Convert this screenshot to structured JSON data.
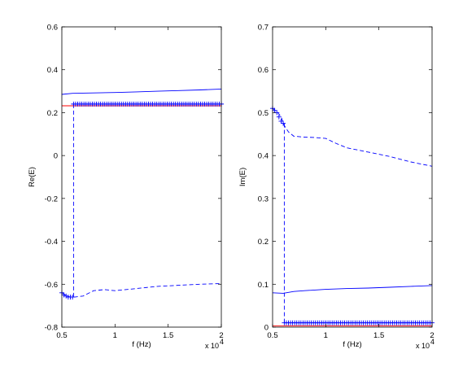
{
  "chart_data": [
    {
      "type": "line",
      "xlabel": "f (Hz)",
      "ylabel": "Re(E)",
      "xlim": [
        5000,
        20000
      ],
      "ylim": [
        -0.8,
        0.6
      ],
      "xticks": [
        5000,
        10000,
        15000,
        20000
      ],
      "xtick_labels": [
        "0.5",
        "1",
        "1.5",
        "2"
      ],
      "x_exponent_label": "x 10",
      "x_exponent_power": "4",
      "yticks": [
        -0.8,
        -0.6,
        -0.4,
        -0.2,
        0,
        0.2,
        0.4,
        0.6
      ],
      "ytick_labels": [
        "-0.8",
        "-0.6",
        "-0.4",
        "-0.2",
        "0",
        "0.2",
        "0.4",
        "0.6"
      ],
      "series": [
        {
          "style": "solid",
          "color": "#0000ff",
          "x": [
            5000,
            6000,
            8000,
            10000,
            12000,
            14000,
            16000,
            18000,
            20000
          ],
          "values": [
            0.285,
            0.29,
            0.292,
            0.294,
            0.297,
            0.3,
            0.303,
            0.306,
            0.31
          ]
        },
        {
          "style": "dashed",
          "color": "#0000ff",
          "x": [
            5000,
            5500,
            5800,
            6100,
            6200,
            7000,
            8000,
            9000,
            10000,
            12000,
            14000,
            16000,
            18000,
            20000
          ],
          "values": [
            -0.64,
            -0.655,
            -0.66,
            -0.66,
            -0.66,
            -0.655,
            -0.63,
            -0.625,
            -0.63,
            -0.62,
            -0.61,
            -0.605,
            -0.6,
            -0.597
          ]
        },
        {
          "style": "dashed",
          "color": "#0000ff",
          "x": [
            6100,
            6100
          ],
          "values": [
            0.24,
            -0.66
          ]
        },
        {
          "style": "solid",
          "color": "#ff0000",
          "x": [
            5000,
            20000
          ],
          "values": [
            0.232,
            0.232
          ]
        },
        {
          "style": "markers",
          "marker": "+",
          "color": "#0000ff",
          "x": [
            5000,
            5200,
            5400,
            5600,
            5800,
            6000
          ],
          "values": [
            -0.64,
            -0.65,
            -0.655,
            -0.66,
            -0.66,
            -0.66
          ]
        },
        {
          "style": "markers",
          "marker": "+",
          "color": "#0000ff",
          "x_range": [
            6100,
            20000
          ],
          "count": 72,
          "value": 0.24
        }
      ]
    },
    {
      "type": "line",
      "xlabel": "f (Hz)",
      "ylabel": "Im(E)",
      "xlim": [
        5000,
        20000
      ],
      "ylim": [
        0,
        0.7
      ],
      "xticks": [
        5000,
        10000,
        15000,
        20000
      ],
      "xtick_labels": [
        "0.5",
        "1",
        "1.5",
        "2"
      ],
      "x_exponent_label": "x 10",
      "x_exponent_power": "4",
      "yticks": [
        0,
        0.1,
        0.2,
        0.3,
        0.4,
        0.5,
        0.6,
        0.7
      ],
      "ytick_labels": [
        "0",
        "0.1",
        "0.2",
        "0.3",
        "0.4",
        "0.5",
        "0.6",
        "0.7"
      ],
      "series": [
        {
          "style": "dashed",
          "color": "#0000ff",
          "x": [
            5000,
            5500,
            5800,
            6100,
            6500,
            7000,
            8000,
            9000,
            10000,
            11000,
            12000,
            14000,
            16000,
            18000,
            20000
          ],
          "values": [
            0.51,
            0.5,
            0.49,
            0.47,
            0.455,
            0.445,
            0.443,
            0.442,
            0.44,
            0.428,
            0.418,
            0.408,
            0.398,
            0.385,
            0.375
          ]
        },
        {
          "style": "dashed",
          "color": "#0000ff",
          "x": [
            6100,
            6100
          ],
          "values": [
            0.475,
            0.01
          ]
        },
        {
          "style": "solid",
          "color": "#0000ff",
          "x": [
            5000,
            6000,
            7000,
            8000,
            10000,
            12000,
            14000,
            16000,
            18000,
            20000
          ],
          "values": [
            0.08,
            0.079,
            0.083,
            0.085,
            0.088,
            0.09,
            0.091,
            0.093,
            0.095,
            0.097
          ]
        },
        {
          "style": "solid",
          "color": "#ff0000",
          "x": [
            5000,
            20000
          ],
          "values": [
            0.003,
            0.003
          ]
        },
        {
          "style": "markers",
          "marker": "+",
          "color": "#0000ff",
          "x": [
            5000,
            5200,
            5400,
            5600,
            5800,
            6000
          ],
          "values": [
            0.51,
            0.505,
            0.5,
            0.49,
            0.48,
            0.475
          ]
        },
        {
          "style": "markers",
          "marker": "+",
          "color": "#0000ff",
          "x_range": [
            6100,
            20000
          ],
          "count": 72,
          "value": 0.01
        }
      ]
    }
  ]
}
